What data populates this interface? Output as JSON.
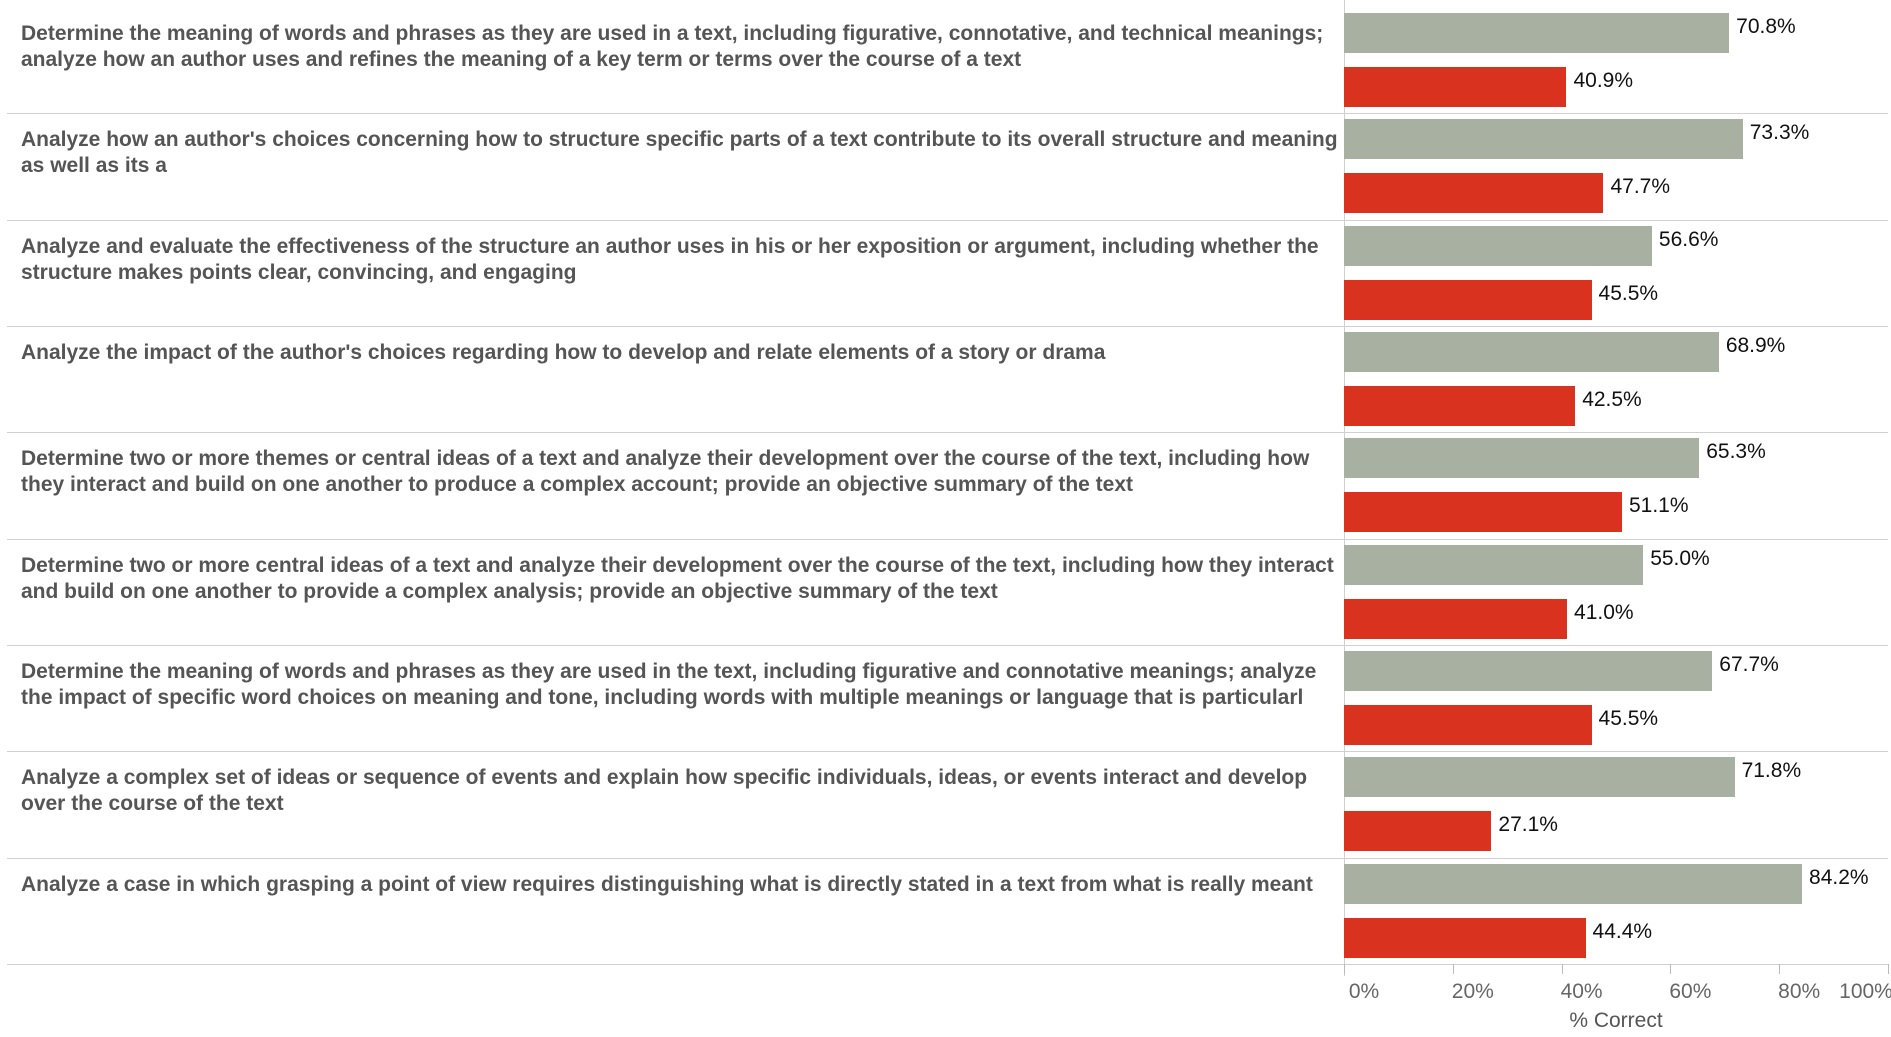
{
  "chart_data": {
    "type": "bar",
    "orientation": "horizontal",
    "categories": [
      "Determine the meaning of words and phrases as they are used in a text, including figurative, connotative, and technical meanings; analyze how an author uses and refines the meaning of a key term or terms over the course of a text",
      "Analyze how an author's choices concerning how to structure specific parts of a text contribute to its overall structure and meaning as well as its a",
      "Analyze and evaluate the effectiveness of the structure an author uses in his or her exposition or argument, including whether the structure makes points clear, convincing, and engaging",
      "Analyze the impact of the author's choices regarding how to develop and relate elements of a story or drama",
      "Determine two or more themes or central ideas of a text and analyze their development over the course of the text, including how they interact and build on one another to produce a complex account; provide an objective summary of the text",
      "Determine two or more central ideas of a text and analyze their development over the course of the text, including how they interact and build on one another to provide a complex analysis; provide an objective summary of the text",
      "Determine the meaning of words and phrases as they are used in the text, including figurative and connotative meanings; analyze the impact of specific word choices on meaning and tone, including words with multiple meanings or language that is particularl",
      "Analyze a complex set of ideas or sequence of events and explain how specific individuals, ideas, or events interact and develop over the course of the text",
      "Analyze a case in which grasping a point of view requires distinguishing what is directly stated in a text from what is really meant"
    ],
    "series": [
      {
        "color": "#a8b0a2",
        "values": [
          70.8,
          73.3,
          56.6,
          68.9,
          65.3,
          55.0,
          67.7,
          71.8,
          84.2
        ],
        "value_labels": [
          "70.8%",
          "73.3%",
          "56.6%",
          "68.9%",
          "65.3%",
          "55.0%",
          "67.7%",
          "71.8%",
          "84.2%"
        ]
      },
      {
        "color": "#d9321f",
        "values": [
          40.9,
          47.7,
          45.5,
          42.5,
          51.1,
          41.0,
          45.5,
          27.1,
          44.4
        ],
        "value_labels": [
          "40.9%",
          "47.7%",
          "45.5%",
          "42.5%",
          "51.1%",
          "41.0%",
          "45.5%",
          "27.1%",
          "44.4%"
        ]
      }
    ],
    "xlim": [
      0,
      100
    ],
    "xticks": [
      {
        "value": 0,
        "label": "0%"
      },
      {
        "value": 20,
        "label": "20%"
      },
      {
        "value": 40,
        "label": "40%"
      },
      {
        "value": 60,
        "label": "60%"
      },
      {
        "value": 80,
        "label": "80%"
      },
      {
        "value": 100,
        "label": "100%"
      }
    ],
    "xlabel": "% Correct"
  }
}
